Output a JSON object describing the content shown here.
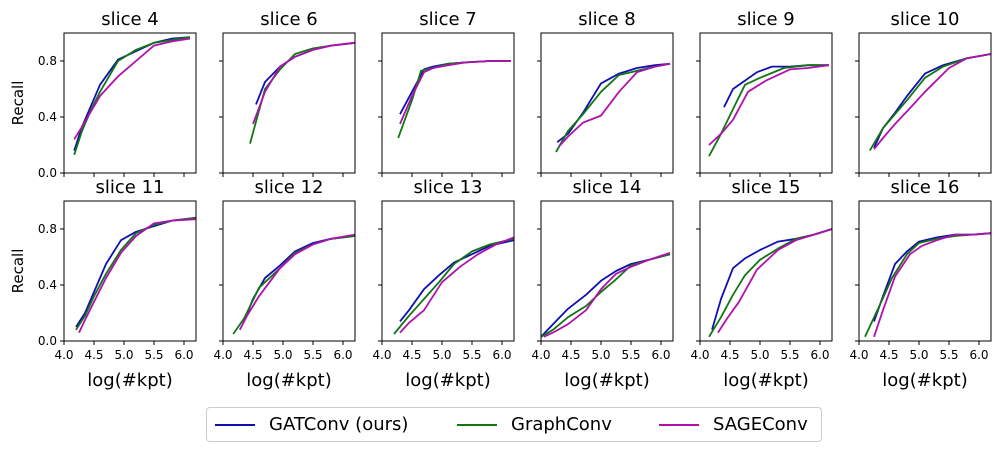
{
  "chart_data": {
    "type": "line",
    "ylabel": "Recall",
    "xlabel": "log(#kpt)",
    "xlim": [
      4.0,
      6.2
    ],
    "ylim": [
      0.0,
      1.0
    ],
    "xticks": [
      "4.0",
      "4.5",
      "5.0",
      "5.5",
      "6.0"
    ],
    "yticks": [
      "0.0",
      "0.4",
      "0.8"
    ],
    "series_styles": [
      {
        "name": "GATConv (ours)",
        "color": "#1010b0"
      },
      {
        "name": "GraphConv",
        "color": "#117711"
      },
      {
        "name": "SAGEConv",
        "color": "#b010b0"
      }
    ],
    "panels": [
      {
        "title": "slice 4",
        "series": [
          {
            "name": "GATConv (ours)",
            "x": [
              4.17,
              4.3,
              4.45,
              4.6,
              4.9,
              5.2,
              5.5,
              5.8,
              6.1
            ],
            "y": [
              0.16,
              0.33,
              0.48,
              0.63,
              0.81,
              0.87,
              0.93,
              0.96,
              0.97
            ]
          },
          {
            "name": "GraphConv",
            "x": [
              4.17,
              4.3,
              4.45,
              4.6,
              4.9,
              5.2,
              5.5,
              5.8,
              6.1
            ],
            "y": [
              0.13,
              0.3,
              0.45,
              0.58,
              0.8,
              0.88,
              0.93,
              0.95,
              0.97
            ]
          },
          {
            "name": "SAGEConv",
            "x": [
              4.17,
              4.3,
              4.45,
              4.6,
              4.9,
              5.2,
              5.5,
              5.8,
              6.1
            ],
            "y": [
              0.24,
              0.33,
              0.44,
              0.55,
              0.69,
              0.8,
              0.91,
              0.94,
              0.96
            ]
          }
        ]
      },
      {
        "title": "slice 6",
        "series": [
          {
            "name": "GATConv (ours)",
            "x": [
              4.55,
              4.7,
              4.95,
              5.2,
              5.5,
              5.8,
              6.2
            ],
            "y": [
              0.49,
              0.65,
              0.76,
              0.83,
              0.88,
              0.91,
              0.93
            ]
          },
          {
            "name": "GraphConv",
            "x": [
              4.45,
              4.7,
              4.95,
              5.2,
              5.5,
              5.8,
              6.2
            ],
            "y": [
              0.21,
              0.6,
              0.74,
              0.85,
              0.89,
              0.91,
              0.93
            ]
          },
          {
            "name": "SAGEConv",
            "x": [
              4.5,
              4.7,
              4.95,
              5.2,
              5.5,
              5.8,
              6.2
            ],
            "y": [
              0.35,
              0.58,
              0.76,
              0.83,
              0.88,
              0.91,
              0.93
            ]
          }
        ]
      },
      {
        "title": "slice 7",
        "series": [
          {
            "name": "GATConv (ours)",
            "x": [
              4.3,
              4.5,
              4.7,
              4.85,
              5.1,
              5.4,
              5.8,
              6.15
            ],
            "y": [
              0.42,
              0.58,
              0.74,
              0.76,
              0.78,
              0.79,
              0.8,
              0.8
            ]
          },
          {
            "name": "GraphConv",
            "x": [
              4.27,
              4.5,
              4.65,
              4.85,
              5.1,
              5.4,
              5.8,
              6.15
            ],
            "y": [
              0.25,
              0.52,
              0.73,
              0.75,
              0.78,
              0.79,
              0.8,
              0.8
            ]
          },
          {
            "name": "SAGEConv",
            "x": [
              4.3,
              4.5,
              4.7,
              4.85,
              5.1,
              5.4,
              5.8,
              6.15
            ],
            "y": [
              0.35,
              0.55,
              0.72,
              0.75,
              0.77,
              0.79,
              0.8,
              0.8
            ]
          }
        ]
      },
      {
        "title": "slice 8",
        "series": [
          {
            "name": "GATConv (ours)",
            "x": [
              4.27,
              4.45,
              4.7,
              5.0,
              5.3,
              5.6,
              5.9,
              6.15
            ],
            "y": [
              0.22,
              0.28,
              0.43,
              0.64,
              0.71,
              0.75,
              0.77,
              0.78
            ]
          },
          {
            "name": "GraphConv",
            "x": [
              4.25,
              4.45,
              4.7,
              5.0,
              5.3,
              5.6,
              5.9,
              6.15
            ],
            "y": [
              0.15,
              0.3,
              0.42,
              0.58,
              0.7,
              0.73,
              0.76,
              0.78
            ]
          },
          {
            "name": "SAGEConv",
            "x": [
              4.3,
              4.45,
              4.7,
              5.0,
              5.3,
              5.6,
              5.9,
              6.15
            ],
            "y": [
              0.19,
              0.26,
              0.36,
              0.41,
              0.58,
              0.72,
              0.76,
              0.78
            ]
          }
        ]
      },
      {
        "title": "slice 9",
        "series": [
          {
            "name": "GATConv (ours)",
            "x": [
              4.4,
              4.55,
              4.75,
              4.95,
              5.2,
              5.5,
              5.8,
              6.15
            ],
            "y": [
              0.47,
              0.6,
              0.66,
              0.72,
              0.76,
              0.76,
              0.77,
              0.77
            ]
          },
          {
            "name": "GraphConv",
            "x": [
              4.15,
              4.35,
              4.6,
              4.75,
              5.0,
              5.4,
              5.8,
              6.15
            ],
            "y": [
              0.12,
              0.28,
              0.5,
              0.63,
              0.68,
              0.75,
              0.77,
              0.77
            ]
          },
          {
            "name": "SAGEConv",
            "x": [
              4.15,
              4.35,
              4.55,
              4.8,
              5.1,
              5.5,
              5.8,
              6.15
            ],
            "y": [
              0.2,
              0.28,
              0.38,
              0.58,
              0.66,
              0.74,
              0.75,
              0.77
            ]
          }
        ]
      },
      {
        "title": "slice 10",
        "series": [
          {
            "name": "GATConv (ours)",
            "x": [
              4.25,
              4.4,
              4.6,
              4.8,
              5.1,
              5.4,
              5.8,
              6.2
            ],
            "y": [
              0.18,
              0.32,
              0.43,
              0.55,
              0.71,
              0.77,
              0.82,
              0.85
            ]
          },
          {
            "name": "GraphConv",
            "x": [
              4.18,
              4.4,
              4.6,
              4.8,
              5.1,
              5.4,
              5.8,
              6.2
            ],
            "y": [
              0.16,
              0.32,
              0.42,
              0.52,
              0.68,
              0.76,
              0.82,
              0.85
            ]
          },
          {
            "name": "SAGEConv",
            "x": [
              4.25,
              4.4,
              4.6,
              4.8,
              5.1,
              5.5,
              5.8,
              6.2
            ],
            "y": [
              0.17,
              0.25,
              0.35,
              0.44,
              0.58,
              0.75,
              0.82,
              0.85
            ]
          }
        ]
      },
      {
        "title": "slice 11",
        "series": [
          {
            "name": "GATConv (ours)",
            "x": [
              4.2,
              4.35,
              4.5,
              4.7,
              4.95,
              5.2,
              5.5,
              5.8,
              6.2
            ],
            "y": [
              0.1,
              0.2,
              0.35,
              0.55,
              0.72,
              0.78,
              0.82,
              0.86,
              0.88
            ]
          },
          {
            "name": "GraphConv",
            "x": [
              4.2,
              4.35,
              4.5,
              4.7,
              4.95,
              5.2,
              5.5,
              5.8,
              6.2
            ],
            "y": [
              0.08,
              0.18,
              0.32,
              0.48,
              0.65,
              0.77,
              0.83,
              0.86,
              0.88
            ]
          },
          {
            "name": "SAGEConv",
            "x": [
              4.25,
              4.35,
              4.5,
              4.7,
              4.95,
              5.2,
              5.5,
              5.8,
              6.2
            ],
            "y": [
              0.06,
              0.15,
              0.28,
              0.45,
              0.63,
              0.75,
              0.84,
              0.86,
              0.87
            ]
          }
        ]
      },
      {
        "title": "slice 12",
        "series": [
          {
            "name": "GATConv (ours)",
            "x": [
              4.35,
              4.5,
              4.7,
              4.95,
              5.2,
              5.5,
              5.8,
              6.2
            ],
            "y": [
              0.14,
              0.3,
              0.45,
              0.54,
              0.64,
              0.7,
              0.73,
              0.75
            ]
          },
          {
            "name": "GraphConv",
            "x": [
              4.17,
              4.35,
              4.6,
              4.95,
              5.2,
              5.5,
              5.8,
              6.2
            ],
            "y": [
              0.05,
              0.16,
              0.38,
              0.52,
              0.63,
              0.69,
              0.73,
              0.75
            ]
          },
          {
            "name": "SAGEConv",
            "x": [
              4.28,
              4.4,
              4.6,
              4.95,
              5.2,
              5.5,
              5.8,
              6.2
            ],
            "y": [
              0.08,
              0.18,
              0.32,
              0.52,
              0.62,
              0.69,
              0.73,
              0.76
            ]
          }
        ]
      },
      {
        "title": "slice 13",
        "series": [
          {
            "name": "GATConv (ours)",
            "x": [
              4.3,
              4.45,
              4.7,
              4.95,
              5.2,
              5.5,
              5.8,
              6.2
            ],
            "y": [
              0.14,
              0.22,
              0.37,
              0.47,
              0.56,
              0.62,
              0.68,
              0.72
            ]
          },
          {
            "name": "GraphConv",
            "x": [
              4.2,
              4.45,
              4.7,
              4.95,
              5.2,
              5.5,
              5.8,
              6.2
            ],
            "y": [
              0.05,
              0.18,
              0.3,
              0.42,
              0.55,
              0.64,
              0.69,
              0.73
            ]
          },
          {
            "name": "SAGEConv",
            "x": [
              4.3,
              4.45,
              4.7,
              5.0,
              5.3,
              5.6,
              5.9,
              6.2
            ],
            "y": [
              0.06,
              0.13,
              0.22,
              0.42,
              0.53,
              0.62,
              0.69,
              0.74
            ]
          }
        ]
      },
      {
        "title": "slice 14",
        "series": [
          {
            "name": "GATConv (ours)",
            "x": [
              4.0,
              4.2,
              4.45,
              4.75,
              5.0,
              5.25,
              5.5,
              5.8,
              6.15
            ],
            "y": [
              0.03,
              0.12,
              0.23,
              0.33,
              0.43,
              0.5,
              0.55,
              0.58,
              0.62
            ]
          },
          {
            "name": "GraphConv",
            "x": [
              4.0,
              4.2,
              4.45,
              4.75,
              5.0,
              5.25,
              5.5,
              5.8,
              6.15
            ],
            "y": [
              0.03,
              0.08,
              0.17,
              0.25,
              0.35,
              0.44,
              0.54,
              0.58,
              0.62
            ]
          },
          {
            "name": "SAGEConv",
            "x": [
              4.05,
              4.2,
              4.45,
              4.75,
              5.0,
              5.25,
              5.5,
              5.8,
              6.15
            ],
            "y": [
              0.03,
              0.06,
              0.12,
              0.22,
              0.37,
              0.48,
              0.53,
              0.58,
              0.63
            ]
          }
        ]
      },
      {
        "title": "slice 15",
        "series": [
          {
            "name": "GATConv (ours)",
            "x": [
              4.2,
              4.35,
              4.55,
              4.75,
              5.0,
              5.3,
              5.6,
              5.9,
              6.2
            ],
            "y": [
              0.08,
              0.3,
              0.52,
              0.59,
              0.65,
              0.71,
              0.73,
              0.76,
              0.8
            ]
          },
          {
            "name": "GraphConv",
            "x": [
              4.15,
              4.35,
              4.55,
              4.75,
              5.0,
              5.3,
              5.6,
              5.9,
              6.2
            ],
            "y": [
              0.03,
              0.17,
              0.33,
              0.47,
              0.58,
              0.66,
              0.73,
              0.76,
              0.8
            ]
          },
          {
            "name": "SAGEConv",
            "x": [
              4.3,
              4.45,
              4.65,
              4.95,
              5.3,
              5.6,
              5.9,
              6.2
            ],
            "y": [
              0.06,
              0.16,
              0.28,
              0.51,
              0.65,
              0.72,
              0.76,
              0.8
            ]
          }
        ]
      },
      {
        "title": "slice 16",
        "series": [
          {
            "name": "GATConv (ours)",
            "x": [
              4.25,
              4.4,
              4.6,
              4.8,
              5.0,
              5.3,
              5.6,
              5.9,
              6.2
            ],
            "y": [
              0.14,
              0.32,
              0.55,
              0.64,
              0.71,
              0.74,
              0.76,
              0.76,
              0.77
            ]
          },
          {
            "name": "GraphConv",
            "x": [
              4.1,
              4.35,
              4.55,
              4.8,
              5.0,
              5.3,
              5.6,
              5.9,
              6.2
            ],
            "y": [
              0.03,
              0.26,
              0.45,
              0.62,
              0.7,
              0.73,
              0.75,
              0.76,
              0.77
            ]
          },
          {
            "name": "SAGEConv",
            "x": [
              4.25,
              4.4,
              4.6,
              4.85,
              5.05,
              5.3,
              5.6,
              5.9,
              6.2
            ],
            "y": [
              0.03,
              0.22,
              0.46,
              0.62,
              0.68,
              0.72,
              0.76,
              0.76,
              0.77
            ]
          }
        ]
      }
    ],
    "legend": {
      "entries": [
        "GATConv (ours)",
        "GraphConv",
        "SAGEConv"
      ],
      "placement": "bottom-center"
    }
  }
}
